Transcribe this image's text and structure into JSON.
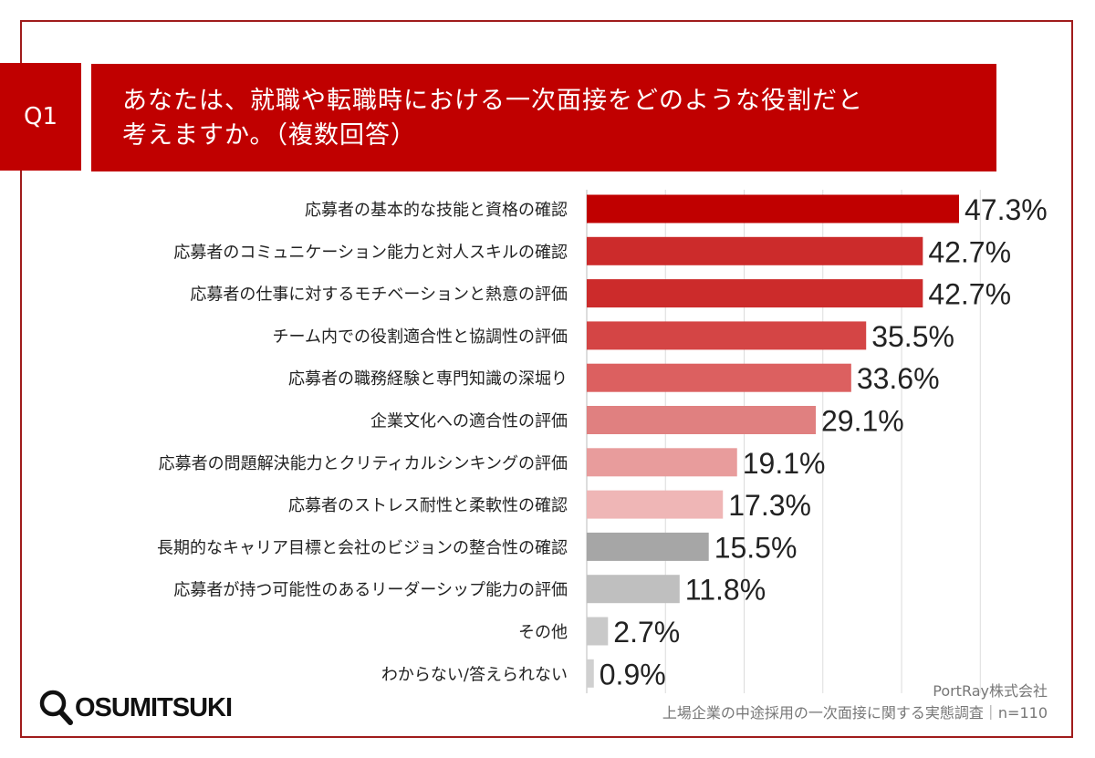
{
  "header": {
    "q_label": "Q1",
    "title_line1": "あなたは、就職や転職時における一次面接をどのような役割だと",
    "title_line2": "考えますか。（複数回答）"
  },
  "footer": {
    "company": "PortRay株式会社",
    "survey": "上場企業の中途採用の一次面接に関する実態調査｜n=110",
    "logo_text": "OSUMITSUKI"
  },
  "chart_data": {
    "type": "bar",
    "orientation": "horizontal",
    "xlim": [
      0,
      50
    ],
    "grid": true,
    "unit": "%",
    "categories": [
      "応募者の基本的な技能と資格の確認",
      "応募者のコミュニケーション能力と対人スキルの確認",
      "応募者の仕事に対するモチベーションと熱意の評価",
      "チーム内での役割適合性と協調性の評価",
      "応募者の職務経験と専門知識の深堀り",
      "企業文化への適合性の評価",
      "応募者の問題解決能力とクリティカルシンキングの評価",
      "応募者のストレス耐性と柔軟性の確認",
      "長期的なキャリア目標と会社のビジョンの整合性の確認",
      "応募者が持つ可能性のあるリーダーシップ能力の評価",
      "その他",
      "わからない/答えられない"
    ],
    "values": [
      47.3,
      42.7,
      42.7,
      35.5,
      33.6,
      29.1,
      19.1,
      17.3,
      15.5,
      11.8,
      2.7,
      0.9
    ],
    "data_labels": [
      "47.3%",
      "42.7%",
      "42.7%",
      "35.5%",
      "33.6%",
      "29.1%",
      "19.1%",
      "17.3%",
      "15.5%",
      "11.8%",
      "2.7%",
      "0.9%"
    ],
    "colors": [
      "#c00000",
      "#cc2b2b",
      "#cc2b2b",
      "#d44545",
      "#dc6060",
      "#e08080",
      "#e89c9c",
      "#efb6b6",
      "#a6a6a6",
      "#bfbfbf",
      "#c9c9c9",
      "#d0d0d0"
    ]
  }
}
